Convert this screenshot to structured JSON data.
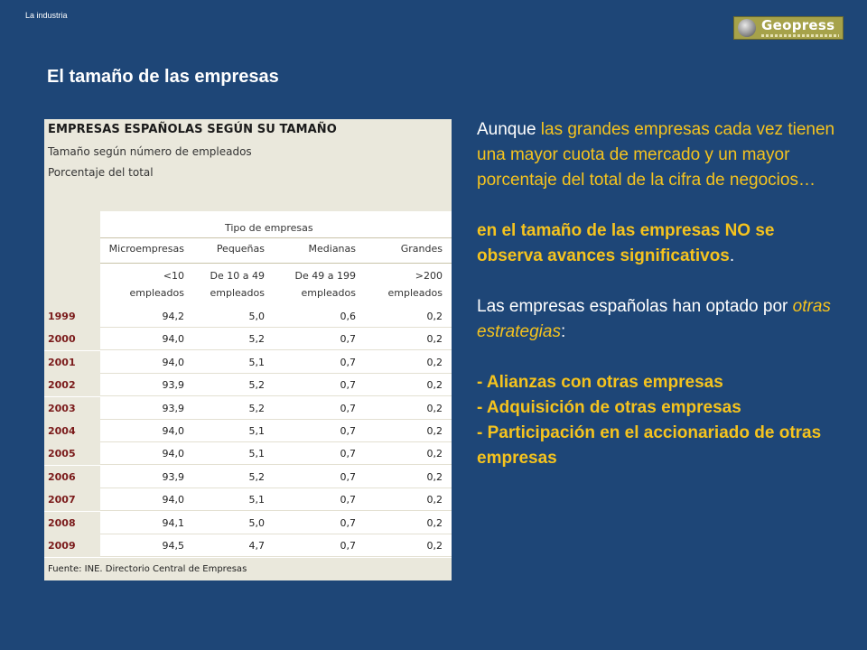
{
  "header": {
    "section_label": "La industria",
    "logo_text": "Geopress"
  },
  "slide": {
    "title": "El tamaño de las empresas"
  },
  "table": {
    "title": "EMPRESAS ESPAÑOLAS SEGÚN SU TAMAÑO",
    "subtitle1": "Tamaño según número de empleados",
    "subtitle2": "Porcentaje del total",
    "group_header": "Tipo de empresas",
    "columns": [
      {
        "name": "Microempresas",
        "range1": "<10",
        "range2": "empleados"
      },
      {
        "name": "Pequeñas",
        "range1": "De 10 a 49",
        "range2": "empleados"
      },
      {
        "name": "Medianas",
        "range1": "De 49 a 199",
        "range2": "empleados"
      },
      {
        "name": "Grandes",
        "range1": ">200",
        "range2": "empleados"
      }
    ],
    "rows": [
      {
        "year": "1999",
        "values": [
          "94,2",
          "5,0",
          "0,6",
          "0,2"
        ]
      },
      {
        "year": "2000",
        "values": [
          "94,0",
          "5,2",
          "0,7",
          "0,2"
        ]
      },
      {
        "year": "2001",
        "values": [
          "94,0",
          "5,1",
          "0,7",
          "0,2"
        ]
      },
      {
        "year": "2002",
        "values": [
          "93,9",
          "5,2",
          "0,7",
          "0,2"
        ]
      },
      {
        "year": "2003",
        "values": [
          "93,9",
          "5,2",
          "0,7",
          "0,2"
        ]
      },
      {
        "year": "2004",
        "values": [
          "94,0",
          "5,1",
          "0,7",
          "0,2"
        ]
      },
      {
        "year": "2005",
        "values": [
          "94,0",
          "5,1",
          "0,7",
          "0,2"
        ]
      },
      {
        "year": "2006",
        "values": [
          "93,9",
          "5,2",
          "0,7",
          "0,2"
        ]
      },
      {
        "year": "2007",
        "values": [
          "94,0",
          "5,1",
          "0,7",
          "0,2"
        ]
      },
      {
        "year": "2008",
        "values": [
          "94,1",
          "5,0",
          "0,7",
          "0,2"
        ]
      },
      {
        "year": "2009",
        "values": [
          "94,5",
          "4,7",
          "0,7",
          "0,2"
        ]
      }
    ],
    "source": "Fuente: INE. Directorio Central de Empresas"
  },
  "text": {
    "p1_a": "Aunque ",
    "p1_b": "las grandes empresas cada vez tienen una mayor cuota de mercado y un mayor porcentaje del total de la cifra de negocios…",
    "p2_a": "en el tamaño de las empresas ",
    "p2_b": "NO se observa avances significativos",
    "p2_c": ".",
    "p3_a": "Las empresas españolas han optado por ",
    "p3_b": "otras estrategias",
    "p3_c": ":",
    "bullet1": "- Alianzas con otras empresas",
    "bullet2": "- Adquisición de otras empresas",
    "bullet3": "- Participación en el accionariado de otras empresas"
  },
  "colors": {
    "background": "#1e4677",
    "accent_yellow": "#f5c31e"
  }
}
